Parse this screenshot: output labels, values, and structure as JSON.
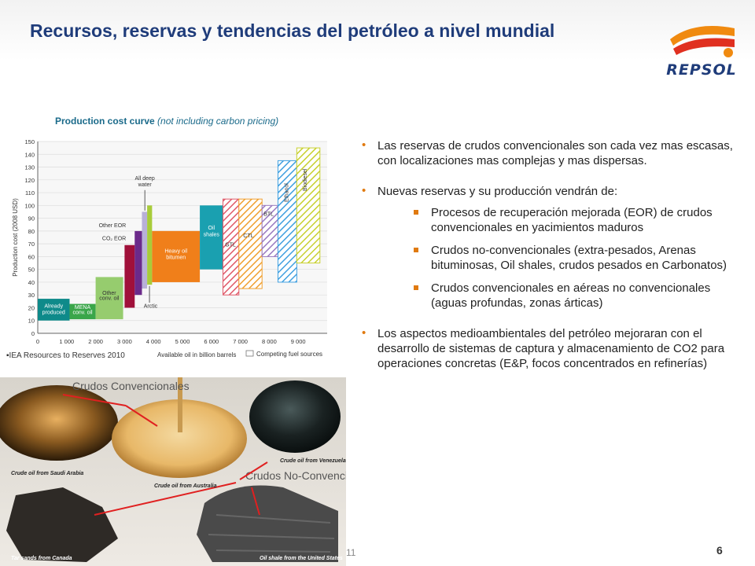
{
  "slide": {
    "title": "Recursos, reservas y tendencias del petróleo a nivel mundial",
    "logo_text": "REPSOL",
    "page_number": "6",
    "footer_mark": "11"
  },
  "chart_data": {
    "type": "bar",
    "title": "Production cost curve",
    "subtitle": "(not including carbon pricing)",
    "ylabel": "Production cost (2008 USD)",
    "xlabel": "Available oil in billion barrels",
    "legend": [
      "Competing fuel sources"
    ],
    "ylim": [
      0,
      150
    ],
    "xlim": [
      0,
      10000
    ],
    "y_ticks": [
      0,
      10,
      20,
      30,
      40,
      50,
      60,
      70,
      80,
      90,
      100,
      110,
      120,
      130,
      140,
      150
    ],
    "x_ticks": [
      "0",
      "1 000",
      "2 000",
      "3 000",
      "4 000",
      "5 000",
      "6 000",
      "7 000",
      "8 000",
      "9 000"
    ],
    "bars": [
      {
        "label": "Already produced",
        "x0": 0,
        "x1": 1100,
        "y0": 10,
        "y1": 27,
        "color": "#0e8a8a",
        "hatched": false
      },
      {
        "label": "MENA conv. oil",
        "x0": 1100,
        "x1": 2000,
        "y0": 11,
        "y1": 23,
        "color": "#3aa64a",
        "hatched": false
      },
      {
        "label": "Other conv. oil",
        "x0": 2000,
        "x1": 2950,
        "y0": 11,
        "y1": 44,
        "color": "#96cc6e",
        "hatched": false
      },
      {
        "label": "CO2 EOR",
        "x0": 3000,
        "x1": 3350,
        "y0": 20,
        "y1": 69,
        "color": "#a0103a",
        "hatched": false
      },
      {
        "label": "Other EOR",
        "x0": 3350,
        "x1": 3600,
        "y0": 30,
        "y1": 80,
        "color": "#6b2a8a",
        "hatched": false
      },
      {
        "label": "All deep water",
        "x0": 3600,
        "x1": 3780,
        "y0": 35,
        "y1": 95,
        "color": "#b8b0d8",
        "hatched": false
      },
      {
        "label": "Arctic",
        "x0": 3780,
        "x1": 3950,
        "y0": 38,
        "y1": 100,
        "color": "#a8cc3a",
        "hatched": false
      },
      {
        "label": "Heavy oil bitumen",
        "x0": 3950,
        "x1": 5600,
        "y0": 40,
        "y1": 80,
        "color": "#f07f1a",
        "hatched": false
      },
      {
        "label": "Oil shales",
        "x0": 5600,
        "x1": 6400,
        "y0": 50,
        "y1": 100,
        "color": "#1aa0b0",
        "hatched": false
      },
      {
        "label": "GTL",
        "x0": 6400,
        "x1": 6950,
        "y0": 30,
        "y1": 105,
        "color": "#e05a6a",
        "hatched": true
      },
      {
        "label": "CTL",
        "x0": 6950,
        "x1": 7750,
        "y0": 35,
        "y1": 105,
        "color": "#f0a030",
        "hatched": true
      },
      {
        "label": "BTL",
        "x0": 7750,
        "x1": 8300,
        "y0": 60,
        "y1": 100,
        "color": "#9a7ac0",
        "hatched": true
      },
      {
        "label": "Ethanol",
        "x0": 8300,
        "x1": 8950,
        "y0": 40,
        "y1": 135,
        "color": "#40a0e0",
        "hatched": true
      },
      {
        "label": "Biodiesel",
        "x0": 8950,
        "x1": 9750,
        "y0": 55,
        "y1": 145,
        "color": "#c8d030",
        "hatched": true
      }
    ]
  },
  "source_note": "▪IEA Resources to Reserves 2010",
  "photo_panel": {
    "label_conventional": "Crudos Convencionales",
    "label_non_conventional": "Crudos No-Convencionales",
    "caption_saudi": "Crude oil from Saudi Arabia",
    "caption_australia": "Crude oil from Australia",
    "caption_venezuela": "Crude oil from Venezuela",
    "caption_canada": "Tar sands from Canada",
    "caption_us": "Oil shale from the United States"
  },
  "bullets": {
    "b1": "Las reservas de crudos convencionales son cada vez mas escasas, con localizaciones mas complejas y mas dispersas.",
    "b2": "Nuevas reservas y su producción vendrán de:",
    "b2_sub": [
      "Procesos de recuperación mejorada (EOR) de crudos convencionales en yacimientos maduros",
      "Crudos no-convencionales (extra-pesados, Arenas bituminosas, Oil shales, crudos pesados en Carbonatos)",
      "Crudos convencionales en aéreas no convencionales (aguas profundas, zonas árticas)"
    ],
    "b3": "Los aspectos medioambientales del petróleo mejoraran con el desarrollo de sistemas de captura y almacenamiento de CO2 para operaciones concretas (E&P, focos concentrados en refinerías)",
    "bullet_glyph": "•"
  },
  "colors": {
    "title": "#1f3c7a",
    "bullet_accent": "#e07a10",
    "logo_orange": "#f08a10",
    "logo_red": "#e03020"
  }
}
